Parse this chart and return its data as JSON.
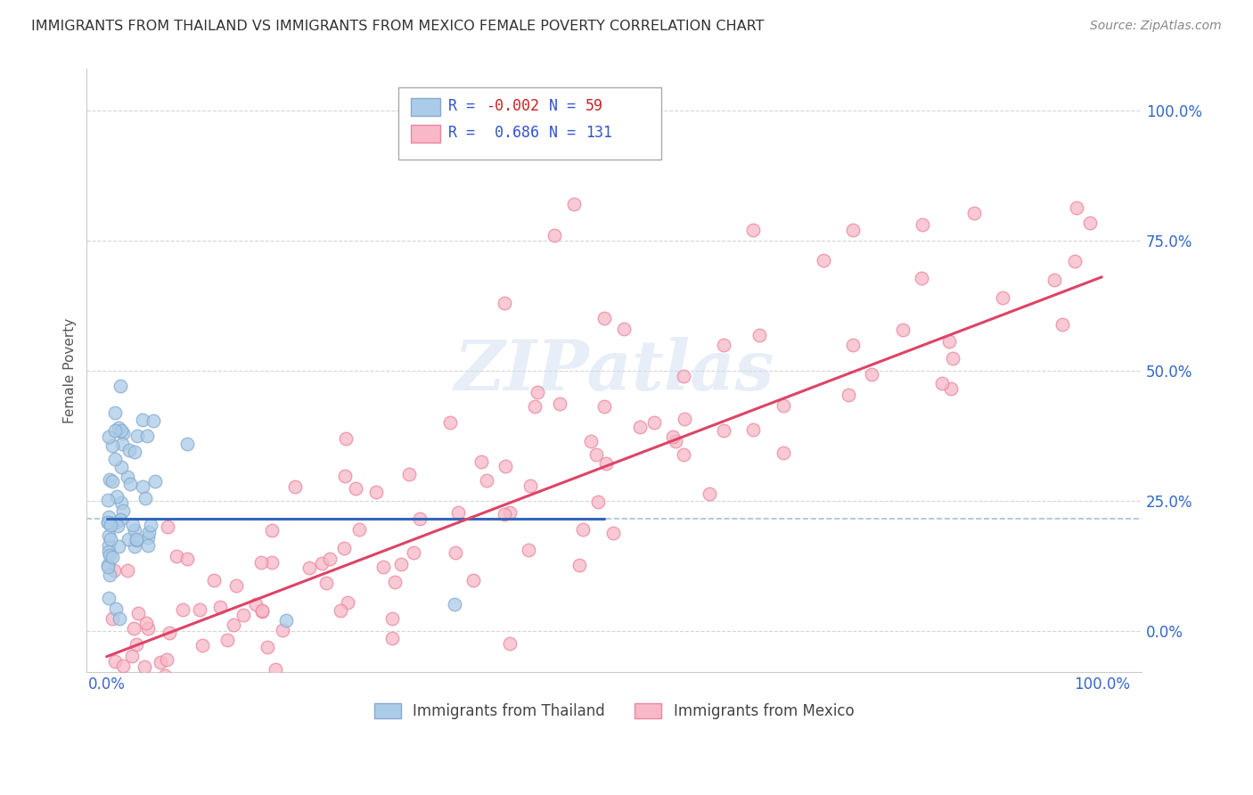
{
  "title": "IMMIGRANTS FROM THAILAND VS IMMIGRANTS FROM MEXICO FEMALE POVERTY CORRELATION CHART",
  "source": "Source: ZipAtlas.com",
  "ylabel": "Female Poverty",
  "xlabel": "",
  "xlim": [
    0.0,
    1.0
  ],
  "ylim": [
    -0.08,
    1.08
  ],
  "ytick_vals": [
    0.0,
    0.25,
    0.5,
    0.75,
    1.0
  ],
  "ytick_labels": [
    "0.0%",
    "25.0%",
    "50.0%",
    "75.0%",
    "100.0%"
  ],
  "xtick_vals": [
    0.0,
    1.0
  ],
  "xtick_labels": [
    "0.0%",
    "100.0%"
  ],
  "thailand_R": -0.002,
  "thailand_N": 59,
  "mexico_R": 0.686,
  "mexico_N": 131,
  "thailand_color": "#aacce8",
  "thailand_edge_color": "#88aacc",
  "mexico_color": "#f8b8c8",
  "mexico_edge_color": "#e888a0",
  "thailand_line_color": "#3366bb",
  "mexico_line_color": "#dd4466",
  "dashed_line_color": "#99bbdd",
  "dashed_line_y": 0.215,
  "background_color": "#ffffff",
  "grid_color": "#cccccc",
  "watermark_color": "#d0dff0",
  "tick_color": "#3366cc",
  "title_color": "#333333",
  "source_color": "#888888",
  "legend_box_edge": "#aaaaaa",
  "legend_text_color": "#3355cc",
  "legend_R_neg_color": "#cc2222",
  "legend_R_pos_color": "#3355cc",
  "mexico_line_x0": 0.0,
  "mexico_line_y0": -0.05,
  "mexico_line_x1": 1.0,
  "mexico_line_y1": 0.68,
  "thailand_line_x0": 0.0,
  "thailand_line_y0": 0.215,
  "thailand_line_x1": 0.5,
  "thailand_line_y1": 0.215
}
